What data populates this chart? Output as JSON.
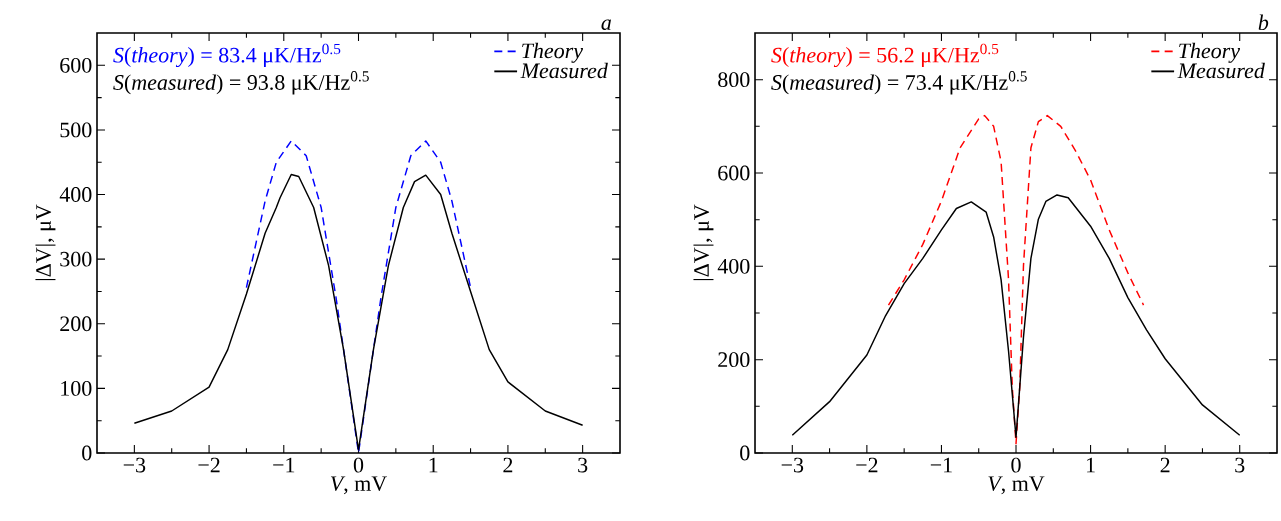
{
  "chart_data": [
    {
      "type": "line",
      "xlabel": "*V*, mV",
      "ylabel": "|ΔV|, μV",
      "annotations": [
        "*S*(*theory*) = 83.4 μK/Hz$^{0.5}$",
        "*S*(*measured*) = 93.8 μK/Hz$^{0.5}$",
        "a"
      ],
      "xlim": [
        -3.5,
        3.5
      ],
      "ylim": [
        0,
        650
      ],
      "xticks": [
        {
          "value": -3,
          "label": "−3"
        },
        {
          "value": -2,
          "label": "−2"
        },
        {
          "value": -1,
          "label": "−1"
        },
        0,
        1,
        2,
        3
      ],
      "yticks": [
        0,
        100,
        200,
        300,
        400,
        500,
        600
      ],
      "legend": "top right",
      "marker": "none",
      "series": [
        {
          "name": "Theory",
          "color": "#0000ff",
          "line_style": "dashed",
          "x": [
            -1.5,
            -1.25,
            -1.1,
            -0.9,
            -0.7,
            -0.5,
            -0.3,
            -0.1,
            0,
            0.1,
            0.3,
            0.5,
            0.7,
            0.9,
            1.1,
            1.25,
            1.5
          ],
          "values": [
            256,
            390,
            450,
            483,
            460,
            380,
            240,
            80,
            0,
            80,
            240,
            380,
            460,
            483,
            450,
            390,
            256
          ]
        },
        {
          "name": "Measured",
          "color": "#000000",
          "line_style": "solid",
          "x": [
            -3,
            -2.5,
            -2,
            -1.75,
            -1.5,
            -1.25,
            -1.1,
            -1.05,
            -0.9,
            -0.8,
            -0.6,
            -0.4,
            -0.2,
            0,
            0.2,
            0.4,
            0.6,
            0.75,
            0.9,
            1.1,
            1.25,
            1.5,
            1.75,
            2,
            2.5,
            3
          ],
          "values": [
            46,
            65,
            102,
            160,
            246,
            340,
            380,
            395,
            431,
            428,
            380,
            290,
            160,
            5,
            160,
            290,
            380,
            420,
            430,
            400,
            340,
            250,
            160,
            110,
            65,
            43
          ]
        }
      ]
    },
    {
      "type": "line",
      "xlabel": "*V*, mV",
      "ylabel": "|ΔV|, μV",
      "annotations": [
        "*S*(*theory*) = 56.2 μK/Hz$^{0.5}$",
        "*S*(*measured*) = 73.4 μK/Hz$^{0.5}$",
        "b"
      ],
      "xlim": [
        -3.5,
        3.5
      ],
      "ylim": [
        0,
        900
      ],
      "xticks": [
        {
          "value": -3,
          "label": "−3"
        },
        {
          "value": -2,
          "label": "−2"
        },
        {
          "value": -1,
          "label": "−1"
        },
        0,
        1,
        2,
        3
      ],
      "yticks": [
        0,
        200,
        400,
        600,
        800
      ],
      "legend": "top right",
      "marker": "none",
      "series": [
        {
          "name": "Theory",
          "color": "#ff0000",
          "line_style": "dashed",
          "x": [
            -1.71,
            -1.5,
            -1.25,
            -1.0,
            -0.75,
            -0.5,
            -0.42,
            -0.3,
            -0.2,
            -0.1,
            -0.05,
            0,
            0.05,
            0.1,
            0.2,
            0.3,
            0.42,
            0.6,
            0.8,
            1.0,
            1.25,
            1.5,
            1.71
          ],
          "values": [
            317,
            371,
            447,
            540,
            654,
            716,
            723,
            700,
            624,
            371,
            141,
            20,
            141,
            401,
            654,
            710,
            723,
            700,
            647,
            585,
            478,
            386,
            317
          ]
        },
        {
          "name": "Measured",
          "color": "#000000",
          "line_style": "solid",
          "x": [
            -3,
            -2.5,
            -2,
            -1.75,
            -1.5,
            -1.25,
            -1.0,
            -0.8,
            -0.6,
            -0.4,
            -0.3,
            -0.2,
            -0.1,
            0,
            0.1,
            0.2,
            0.3,
            0.4,
            0.55,
            0.7,
            1.0,
            1.25,
            1.5,
            1.75,
            2,
            2.5,
            3
          ],
          "values": [
            38,
            110,
            210,
            294,
            363,
            417,
            478,
            524,
            538,
            516,
            463,
            371,
            218,
            34,
            248,
            417,
            501,
            539,
            553,
            547,
            486,
            417,
            333,
            264,
            202,
            103,
            38
          ]
        }
      ]
    }
  ]
}
